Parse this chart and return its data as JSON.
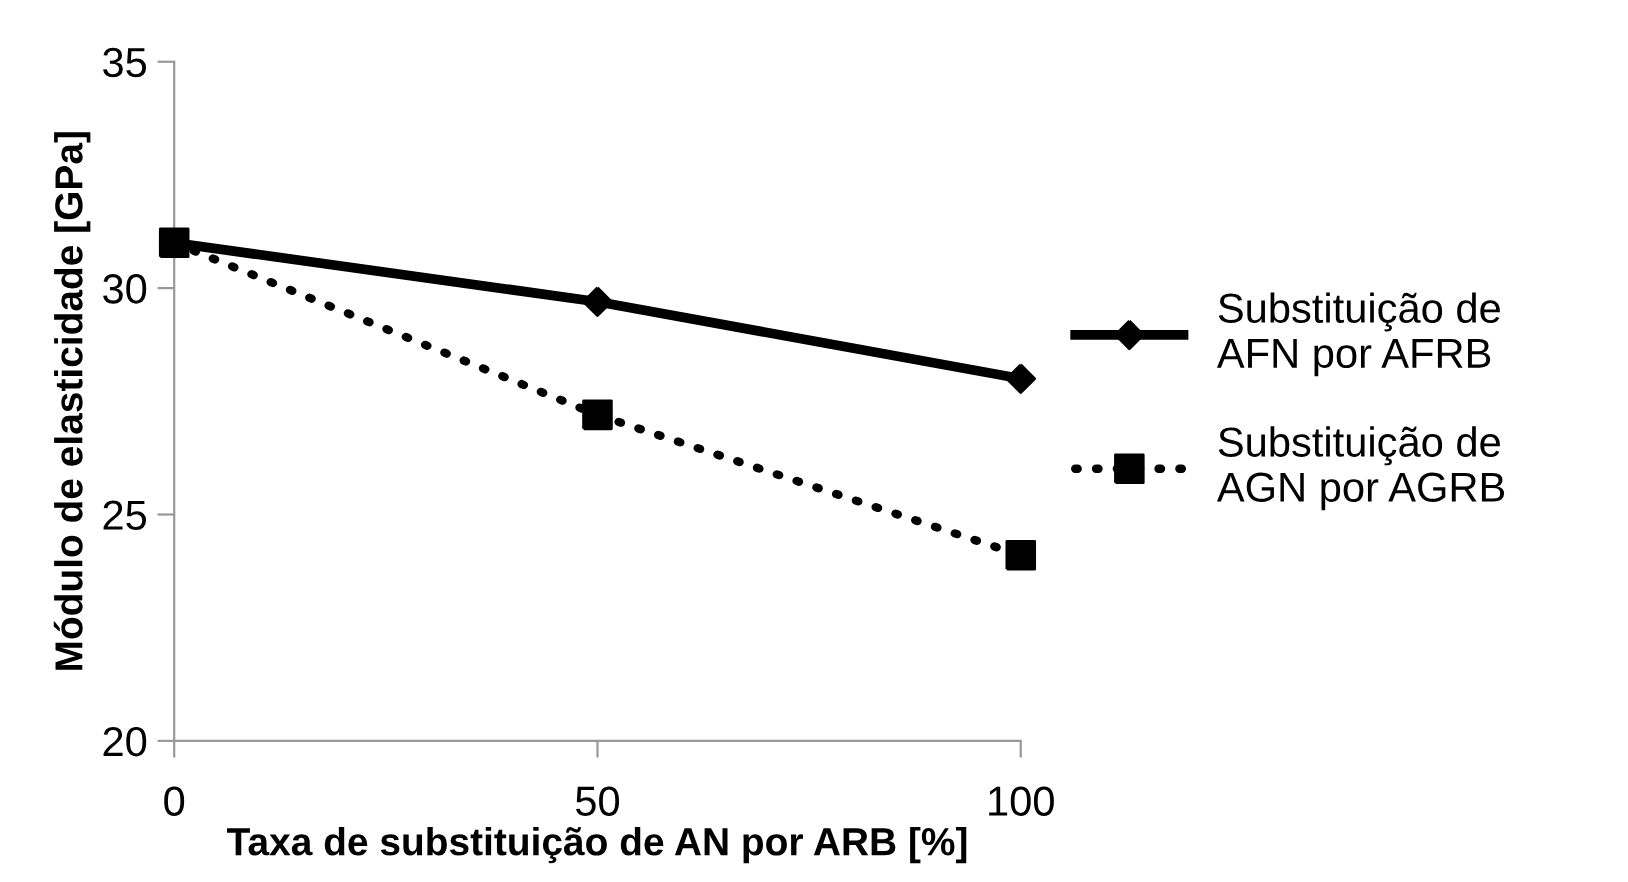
{
  "chart_data": {
    "type": "line",
    "xlabel": "Taxa de substituição de AN por ARB [%]",
    "ylabel": "Módulo de elasticidade [GPa]",
    "x": [
      0,
      50,
      100
    ],
    "xlim": [
      0,
      100
    ],
    "xticks": [
      0,
      50,
      100
    ],
    "ylim": [
      20,
      35
    ],
    "yticks": [
      20,
      25,
      30,
      35
    ],
    "grid": false,
    "legend": "right",
    "series": [
      {
        "name": "Substituição de\nAFN por AFRB",
        "color": "#000000",
        "values": [
          31.0,
          29.7,
          28.0
        ],
        "marker": "diamond",
        "line_style": "solid"
      },
      {
        "name": "Substituição de\nAGN por AGRB",
        "color": "#000000",
        "values": [
          31.0,
          27.2,
          24.1
        ],
        "marker": "square",
        "line_style": "dotted"
      }
    ]
  }
}
